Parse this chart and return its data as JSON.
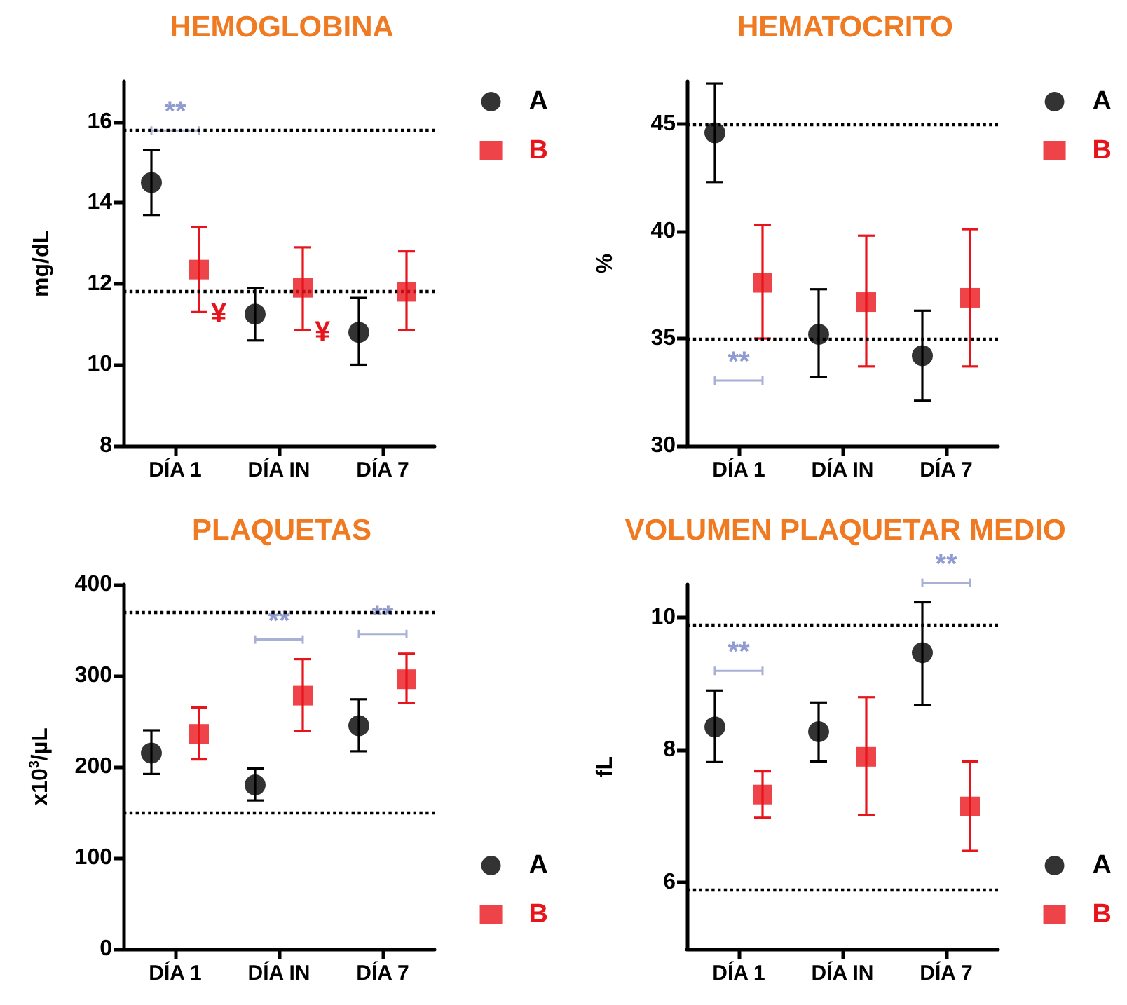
{
  "chart_data": [
    {
      "type": "scatter",
      "title": "HEMOGLOBINA",
      "ylabel": "mg/dL",
      "categories": [
        "DÍA 1",
        "DÍA IN",
        "DÍA 7"
      ],
      "ylim": [
        8,
        17
      ],
      "yticks": [
        8,
        10,
        12,
        14,
        16
      ],
      "legend": "top right",
      "series": [
        {
          "name": "A",
          "color": "#000000",
          "marker": "circle",
          "values": [
            14.5,
            11.25,
            10.8
          ],
          "errors": [
            [
              13.7,
              15.3
            ],
            [
              10.6,
              11.9
            ],
            [
              10.0,
              11.65
            ]
          ]
        },
        {
          "name": "B",
          "color": "#e8141b",
          "marker": "square",
          "values": [
            12.35,
            11.9,
            11.8
          ],
          "errors": [
            [
              11.3,
              13.4
            ],
            [
              10.85,
              12.9
            ],
            [
              10.85,
              12.8
            ]
          ]
        }
      ],
      "ref_lines": [
        {
          "axis": "y",
          "value": 15.8,
          "line_style": "dotted",
          "color": "#000000"
        },
        {
          "axis": "y",
          "value": 11.8,
          "line_style": "dotted",
          "color": "#000000"
        }
      ],
      "annotations": [
        "**",
        "¥",
        "¥"
      ]
    },
    {
      "type": "scatter",
      "title": "HEMATOCRITO",
      "ylabel": "%",
      "categories": [
        "DÍA 1",
        "DÍA IN",
        "DÍA 7"
      ],
      "ylim": [
        30,
        47
      ],
      "yticks": [
        30,
        35,
        40,
        45
      ],
      "legend": "top right",
      "series": [
        {
          "name": "A",
          "color": "#000000",
          "marker": "circle",
          "values": [
            44.6,
            35.2,
            34.2
          ],
          "errors": [
            [
              42.3,
              46.9
            ],
            [
              33.2,
              37.3
            ],
            [
              32.1,
              36.3
            ]
          ]
        },
        {
          "name": "B",
          "color": "#e8141b",
          "marker": "square",
          "values": [
            37.6,
            36.7,
            36.9
          ],
          "errors": [
            [
              35.0,
              40.3
            ],
            [
              33.7,
              39.8
            ],
            [
              33.7,
              40.1
            ]
          ]
        }
      ],
      "ref_lines": [
        {
          "axis": "y",
          "value": 45,
          "line_style": "dotted",
          "color": "#000000"
        },
        {
          "axis": "y",
          "value": 35,
          "line_style": "dotted",
          "color": "#000000"
        }
      ],
      "annotations": [
        "**"
      ]
    },
    {
      "type": "scatter",
      "title": "PLAQUETAS",
      "ylabel": "x10$^{3}$/µL",
      "categories": [
        "DÍA 1",
        "DÍA IN",
        "DÍA 7"
      ],
      "ylim": [
        0,
        400
      ],
      "yticks": [
        0,
        100,
        200,
        300,
        400
      ],
      "legend": "bottom right",
      "series": [
        {
          "name": "A",
          "color": "#000000",
          "marker": "circle",
          "values": [
            215,
            180,
            245
          ],
          "errors": [
            [
              192,
              240
            ],
            [
              163,
              198
            ],
            [
              217,
              274
            ]
          ]
        },
        {
          "name": "B",
          "color": "#e8141b",
          "marker": "square",
          "values": [
            236,
            278,
            296
          ],
          "errors": [
            [
              208,
              265
            ],
            [
              239,
              318
            ],
            [
              270,
              324
            ]
          ]
        }
      ],
      "ref_lines": [
        {
          "axis": "y",
          "value": 370,
          "line_style": "dotted",
          "color": "#000000"
        },
        {
          "axis": "y",
          "value": 150,
          "line_style": "dotted",
          "color": "#000000"
        }
      ],
      "annotations": [
        "**",
        "**"
      ]
    },
    {
      "type": "scatter",
      "title": "VOLUMEN PLAQUETAR MEDIO",
      "ylabel": "fL",
      "categories": [
        "DÍA 1",
        "DÍA IN",
        "DÍA 7"
      ],
      "ylim": [
        5,
        10.5
      ],
      "yticks": [
        6,
        8,
        10
      ],
      "legend": "bottom right",
      "series": [
        {
          "name": "A",
          "color": "#000000",
          "marker": "circle",
          "values": [
            8.35,
            8.28,
            9.47
          ],
          "errors": [
            [
              7.82,
              8.9
            ],
            [
              7.83,
              8.72
            ],
            [
              8.68,
              10.23
            ]
          ]
        },
        {
          "name": "B",
          "color": "#e8141b",
          "marker": "square",
          "values": [
            7.33,
            7.9,
            7.15
          ],
          "errors": [
            [
              6.98,
              7.68
            ],
            [
              7.02,
              8.8
            ],
            [
              6.48,
              7.83
            ]
          ]
        }
      ],
      "ref_lines": [
        {
          "axis": "y",
          "value": 9.9,
          "line_style": "dotted",
          "color": "#000000"
        },
        {
          "axis": "y",
          "value": 5.9,
          "line_style": "dotted",
          "color": "#000000"
        }
      ],
      "annotations": [
        "**",
        "**"
      ]
    }
  ]
}
